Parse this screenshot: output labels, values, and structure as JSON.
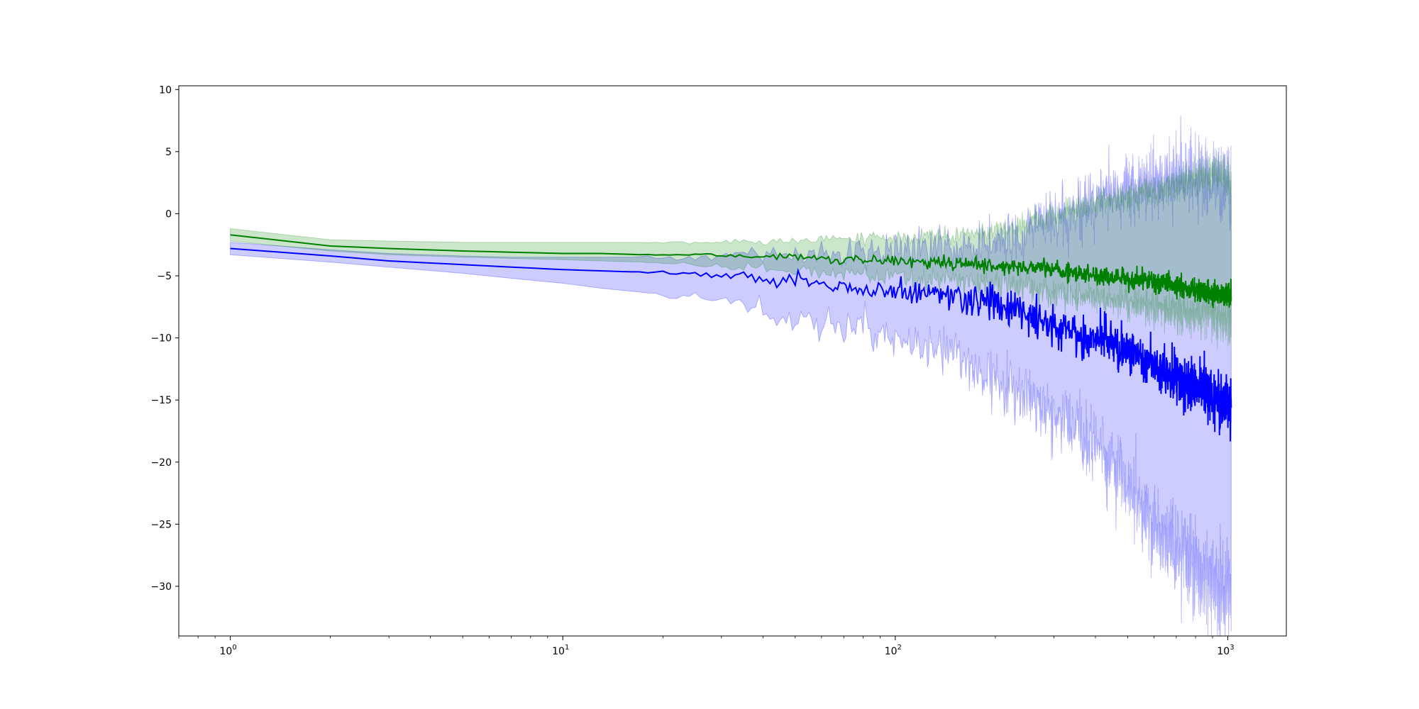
{
  "chart_data": {
    "type": "line",
    "title": "",
    "xlabel": "",
    "ylabel": "",
    "xscale": "log",
    "xlim": [
      0.7,
      1500
    ],
    "ylim": [
      -34,
      10.3
    ],
    "grid": false,
    "x_ticks": [
      {
        "value": 1,
        "base": "10",
        "exp": "0"
      },
      {
        "value": 10,
        "base": "10",
        "exp": "1"
      },
      {
        "value": 100,
        "base": "10",
        "exp": "2"
      },
      {
        "value": 1000,
        "base": "10",
        "exp": "3"
      }
    ],
    "y_ticks": [
      {
        "value": 10,
        "label": "10"
      },
      {
        "value": 5,
        "label": "5"
      },
      {
        "value": 0,
        "label": "0"
      },
      {
        "value": -5,
        "label": "−5"
      },
      {
        "value": -10,
        "label": "−10"
      },
      {
        "value": -15,
        "label": "−15"
      },
      {
        "value": -20,
        "label": "−20"
      },
      {
        "value": -25,
        "label": "−25"
      },
      {
        "value": -30,
        "label": "−30"
      }
    ],
    "series": [
      {
        "color": "#0000ff",
        "band_color": "#0000ff",
        "band_opacity": 0.2,
        "x": [
          1,
          2,
          3,
          5,
          7,
          10,
          13,
          17,
          22,
          28,
          35,
          45,
          60,
          80,
          100,
          130,
          170,
          220,
          260,
          300,
          350,
          400,
          450,
          500,
          600,
          700,
          800,
          900,
          1000,
          1024
        ],
        "mean": [
          -2.8,
          -3.4,
          -3.8,
          -4.1,
          -4.3,
          -4.5,
          -4.6,
          -4.7,
          -4.8,
          -4.9,
          -5.0,
          -5.3,
          -5.7,
          -6.0,
          -6.2,
          -6.5,
          -7.0,
          -7.5,
          -8.3,
          -9.2,
          -9.6,
          -10.0,
          -10.5,
          -11.0,
          -12.2,
          -13.2,
          -13.8,
          -14.5,
          -15.5,
          -15.8
        ],
        "lower": [
          -3.3,
          -3.9,
          -4.3,
          -4.8,
          -5.2,
          -5.6,
          -6.0,
          -6.3,
          -6.6,
          -6.9,
          -7.4,
          -8.0,
          -8.7,
          -9.2,
          -9.8,
          -10.8,
          -12.2,
          -13.8,
          -15.0,
          -16.5,
          -17.5,
          -18.5,
          -20.0,
          -22.0,
          -25.0,
          -27.5,
          -28.5,
          -29.5,
          -30.5,
          -30.8
        ],
        "upper": [
          -2.3,
          -2.9,
          -3.2,
          -3.4,
          -3.5,
          -3.5,
          -3.5,
          -3.5,
          -3.5,
          -3.5,
          -3.4,
          -3.4,
          -3.3,
          -3.2,
          -3.1,
          -3.0,
          -2.7,
          -2.0,
          -1.0,
          0.0,
          0.5,
          1.0,
          1.5,
          2.0,
          2.5,
          3.0,
          3.0,
          3.0,
          2.5,
          2.0
        ]
      },
      {
        "color": "#008000",
        "band_color": "#008000",
        "band_opacity": 0.2,
        "x": [
          1,
          2,
          3,
          5,
          7,
          10,
          13,
          17,
          22,
          28,
          35,
          45,
          60,
          80,
          100,
          130,
          170,
          220,
          260,
          300,
          350,
          400,
          450,
          500,
          600,
          700,
          800,
          900,
          1000,
          1024
        ],
        "mean": [
          -1.7,
          -2.6,
          -2.8,
          -3.0,
          -3.1,
          -3.2,
          -3.2,
          -3.3,
          -3.3,
          -3.3,
          -3.4,
          -3.5,
          -3.6,
          -3.7,
          -3.8,
          -3.9,
          -4.0,
          -4.2,
          -4.4,
          -4.6,
          -4.8,
          -5.0,
          -5.1,
          -5.2,
          -5.5,
          -5.8,
          -6.1,
          -6.3,
          -6.5,
          -6.6
        ],
        "lower": [
          -2.2,
          -3.0,
          -3.3,
          -3.5,
          -3.6,
          -3.7,
          -3.8,
          -3.9,
          -4.0,
          -4.1,
          -4.3,
          -4.5,
          -4.7,
          -4.9,
          -5.1,
          -5.3,
          -5.5,
          -5.8,
          -6.0,
          -6.3,
          -6.5,
          -6.8,
          -7.0,
          -7.2,
          -7.6,
          -7.9,
          -8.2,
          -8.4,
          -8.6,
          -8.7
        ],
        "upper": [
          -1.2,
          -2.1,
          -2.2,
          -2.3,
          -2.3,
          -2.3,
          -2.3,
          -2.3,
          -2.3,
          -2.3,
          -2.3,
          -2.2,
          -2.1,
          -2.0,
          -1.9,
          -1.8,
          -1.6,
          -1.2,
          -0.5,
          0.0,
          0.5,
          1.0,
          1.3,
          1.6,
          2.0,
          2.5,
          3.0,
          3.5,
          3.0,
          2.5
        ]
      }
    ]
  }
}
